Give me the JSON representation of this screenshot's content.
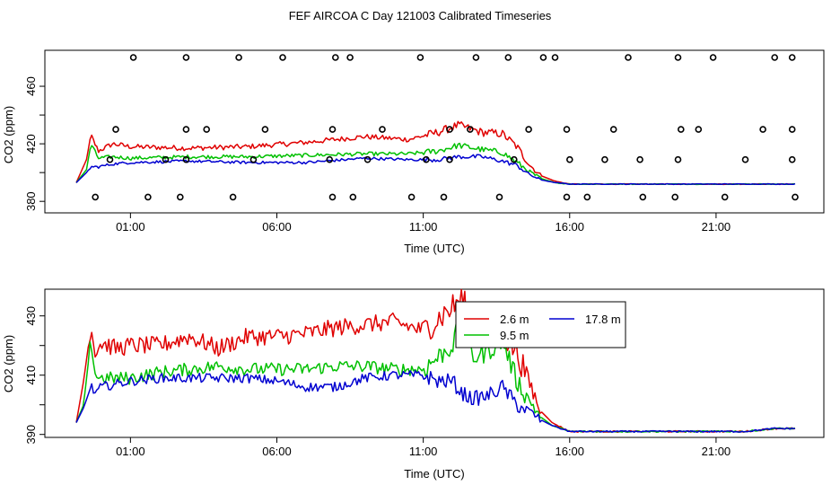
{
  "title": "FEF AIRCOA C  Day 121003  Calibrated Timeseries",
  "colors": {
    "red": "#e00000",
    "green": "#00c000",
    "blue": "#0000d0",
    "axis": "#000000"
  },
  "chart_data": [
    {
      "type": "scatter",
      "panel": "top",
      "xlabel": "Time (UTC)",
      "ylabel": "CO2 (ppm)",
      "xlim": [
        -1.0,
        24.0
      ],
      "ylim": [
        372,
        485
      ],
      "x_ticks": [
        1,
        6,
        11,
        16,
        21
      ],
      "x_tick_labels": [
        "01:00",
        "06:00",
        "11:00",
        "16:00",
        "21:00"
      ],
      "y_ticks": [
        380,
        400,
        420,
        440,
        460
      ],
      "y_tick_labels": [
        "380",
        "",
        "420",
        "",
        "460"
      ],
      "markers": {
        "name": "calibration standards",
        "points": [
          [
            1.1,
            480
          ],
          [
            2.9,
            480
          ],
          [
            4.7,
            480
          ],
          [
            6.2,
            480
          ],
          [
            8.0,
            480
          ],
          [
            8.5,
            480
          ],
          [
            10.9,
            480
          ],
          [
            12.8,
            480
          ],
          [
            13.9,
            480
          ],
          [
            15.1,
            480
          ],
          [
            15.5,
            480
          ],
          [
            18.0,
            480
          ],
          [
            19.7,
            480
          ],
          [
            20.9,
            480
          ],
          [
            23.0,
            480
          ],
          [
            23.6,
            480
          ],
          [
            0.5,
            430
          ],
          [
            2.9,
            430
          ],
          [
            3.6,
            430
          ],
          [
            5.6,
            430
          ],
          [
            7.9,
            430
          ],
          [
            9.6,
            430
          ],
          [
            11.9,
            430
          ],
          [
            12.6,
            430
          ],
          [
            14.6,
            430
          ],
          [
            15.9,
            430
          ],
          [
            17.5,
            430
          ],
          [
            19.8,
            430
          ],
          [
            20.4,
            430
          ],
          [
            22.6,
            430
          ],
          [
            23.6,
            430
          ],
          [
            0.3,
            409
          ],
          [
            2.2,
            409
          ],
          [
            2.9,
            409
          ],
          [
            5.2,
            409
          ],
          [
            7.8,
            409
          ],
          [
            9.1,
            409
          ],
          [
            11.1,
            409
          ],
          [
            11.9,
            409
          ],
          [
            14.1,
            409
          ],
          [
            16.0,
            409
          ],
          [
            17.2,
            409
          ],
          [
            18.4,
            409
          ],
          [
            19.7,
            409
          ],
          [
            22.0,
            409
          ],
          [
            23.6,
            409
          ],
          [
            -0.2,
            383
          ],
          [
            1.6,
            383
          ],
          [
            2.7,
            383
          ],
          [
            4.5,
            383
          ],
          [
            7.9,
            383
          ],
          [
            8.6,
            383
          ],
          [
            10.6,
            383
          ],
          [
            11.7,
            383
          ],
          [
            13.6,
            383
          ],
          [
            15.9,
            383
          ],
          [
            16.6,
            383
          ],
          [
            18.5,
            383
          ],
          [
            19.6,
            383
          ],
          [
            21.3,
            383
          ],
          [
            23.7,
            383
          ]
        ]
      },
      "series": [
        {
          "name": "2.6 m",
          "color": "#e00000",
          "summary_x": [
            -0.85,
            -0.5,
            -0.35,
            -0.1,
            0.4,
            1.0,
            3.0,
            5.0,
            7.0,
            9.0,
            10.5,
            11.5,
            12.2,
            13.0,
            13.7,
            14.2,
            14.6,
            15.0,
            15.5,
            16.0,
            18.0,
            20.0,
            23.7
          ],
          "summary_y": [
            393,
            409,
            426,
            415,
            420,
            418,
            417,
            418,
            421,
            425,
            423,
            428,
            433,
            428,
            427,
            418,
            406,
            398,
            394,
            392,
            392,
            392,
            392
          ]
        },
        {
          "name": "9.5 m",
          "color": "#00c000",
          "summary_x": [
            -0.85,
            -0.5,
            -0.35,
            -0.1,
            0.4,
            1.0,
            3.0,
            5.0,
            7.0,
            9.0,
            10.5,
            11.5,
            12.2,
            13.0,
            13.7,
            14.2,
            14.6,
            15.0,
            15.5,
            16.0,
            18.0,
            20.0,
            23.7
          ],
          "summary_y": [
            393,
            402,
            420,
            410,
            411,
            410,
            411,
            411,
            412,
            413,
            413,
            415,
            419,
            416,
            414,
            407,
            401,
            396,
            393,
            392,
            392,
            392,
            392
          ]
        },
        {
          "name": "17.8 m",
          "color": "#0000d0",
          "summary_x": [
            -0.85,
            -0.5,
            -0.35,
            -0.1,
            0.4,
            1.0,
            3.0,
            5.0,
            7.0,
            9.0,
            10.5,
            11.5,
            12.2,
            13.0,
            13.7,
            14.2,
            14.6,
            15.0,
            15.5,
            16.0,
            18.0,
            20.0,
            23.7
          ],
          "summary_y": [
            393,
            400,
            404,
            404,
            406,
            407,
            408,
            407,
            407,
            410,
            409,
            409,
            411,
            411,
            408,
            405,
            399,
            395,
            393,
            392,
            392,
            392,
            392
          ]
        }
      ]
    },
    {
      "type": "line",
      "panel": "bottom",
      "xlabel": "Time (UTC)",
      "ylabel": "CO2 (ppm)",
      "xlim": [
        -1.0,
        24.0
      ],
      "ylim": [
        389,
        439
      ],
      "x_ticks": [
        1,
        6,
        11,
        16,
        21
      ],
      "x_tick_labels": [
        "01:00",
        "06:00",
        "11:00",
        "16:00",
        "21:00"
      ],
      "y_ticks": [
        390,
        400,
        410,
        420,
        430
      ],
      "y_tick_labels": [
        "390",
        "",
        "410",
        "",
        "430"
      ],
      "legend": {
        "placement": "top-right",
        "entries": [
          "2.6 m",
          "17.8 m",
          "9.5 m"
        ]
      },
      "series": [
        {
          "name": "2.6 m",
          "color": "#e00000",
          "summary_x": [
            -0.85,
            -0.6,
            -0.35,
            -0.2,
            0.0,
            0.5,
            1.0,
            2.0,
            3.0,
            4.0,
            5.0,
            6.0,
            7.0,
            8.0,
            9.0,
            10.0,
            11.0,
            11.5,
            12.0,
            12.3,
            12.7,
            13.2,
            13.7,
            14.2,
            14.6,
            15.0,
            15.4,
            16.0,
            18.0,
            20.0,
            22.0,
            23.0,
            23.7
          ],
          "summary_y": [
            394,
            408,
            426,
            418,
            421,
            419,
            420,
            420,
            423,
            419,
            423,
            423,
            424,
            426,
            427,
            428,
            425,
            429,
            433,
            436,
            428,
            426,
            424,
            418,
            408,
            398,
            394,
            391,
            391,
            391,
            391,
            392,
            392
          ]
        },
        {
          "name": "9.5 m",
          "color": "#00c000",
          "summary_x": [
            -0.85,
            -0.6,
            -0.35,
            -0.2,
            0.0,
            0.5,
            1.0,
            2.0,
            3.0,
            4.0,
            5.0,
            6.0,
            7.0,
            8.0,
            9.0,
            10.0,
            11.0,
            11.5,
            12.0,
            12.3,
            12.7,
            13.2,
            13.7,
            14.2,
            14.6,
            15.0,
            15.4,
            16.0,
            18.0,
            20.0,
            22.0,
            23.0,
            23.7
          ],
          "summary_y": [
            394,
            400,
            422,
            410,
            409,
            409,
            409,
            411,
            412,
            413,
            412,
            412,
            412,
            413,
            413,
            412,
            412,
            416,
            420,
            430,
            416,
            418,
            422,
            408,
            402,
            396,
            393,
            391,
            391,
            391,
            391,
            392,
            392
          ]
        },
        {
          "name": "17.8 m",
          "color": "#0000d0",
          "summary_x": [
            -0.85,
            -0.6,
            -0.35,
            -0.2,
            0.0,
            0.5,
            1.0,
            2.0,
            3.0,
            4.0,
            5.0,
            6.0,
            7.0,
            8.0,
            9.0,
            10.0,
            11.0,
            11.5,
            12.0,
            12.3,
            12.7,
            13.2,
            13.7,
            14.2,
            14.6,
            15.0,
            15.4,
            16.0,
            18.0,
            20.0,
            22.0,
            23.0,
            23.7
          ],
          "summary_y": [
            394,
            399,
            406,
            404,
            406,
            407,
            408,
            409,
            409,
            409,
            409,
            408,
            406,
            406,
            409,
            410,
            410,
            408,
            408,
            404,
            402,
            403,
            406,
            400,
            398,
            395,
            393,
            391,
            391,
            391,
            391,
            392,
            392
          ]
        }
      ]
    }
  ]
}
